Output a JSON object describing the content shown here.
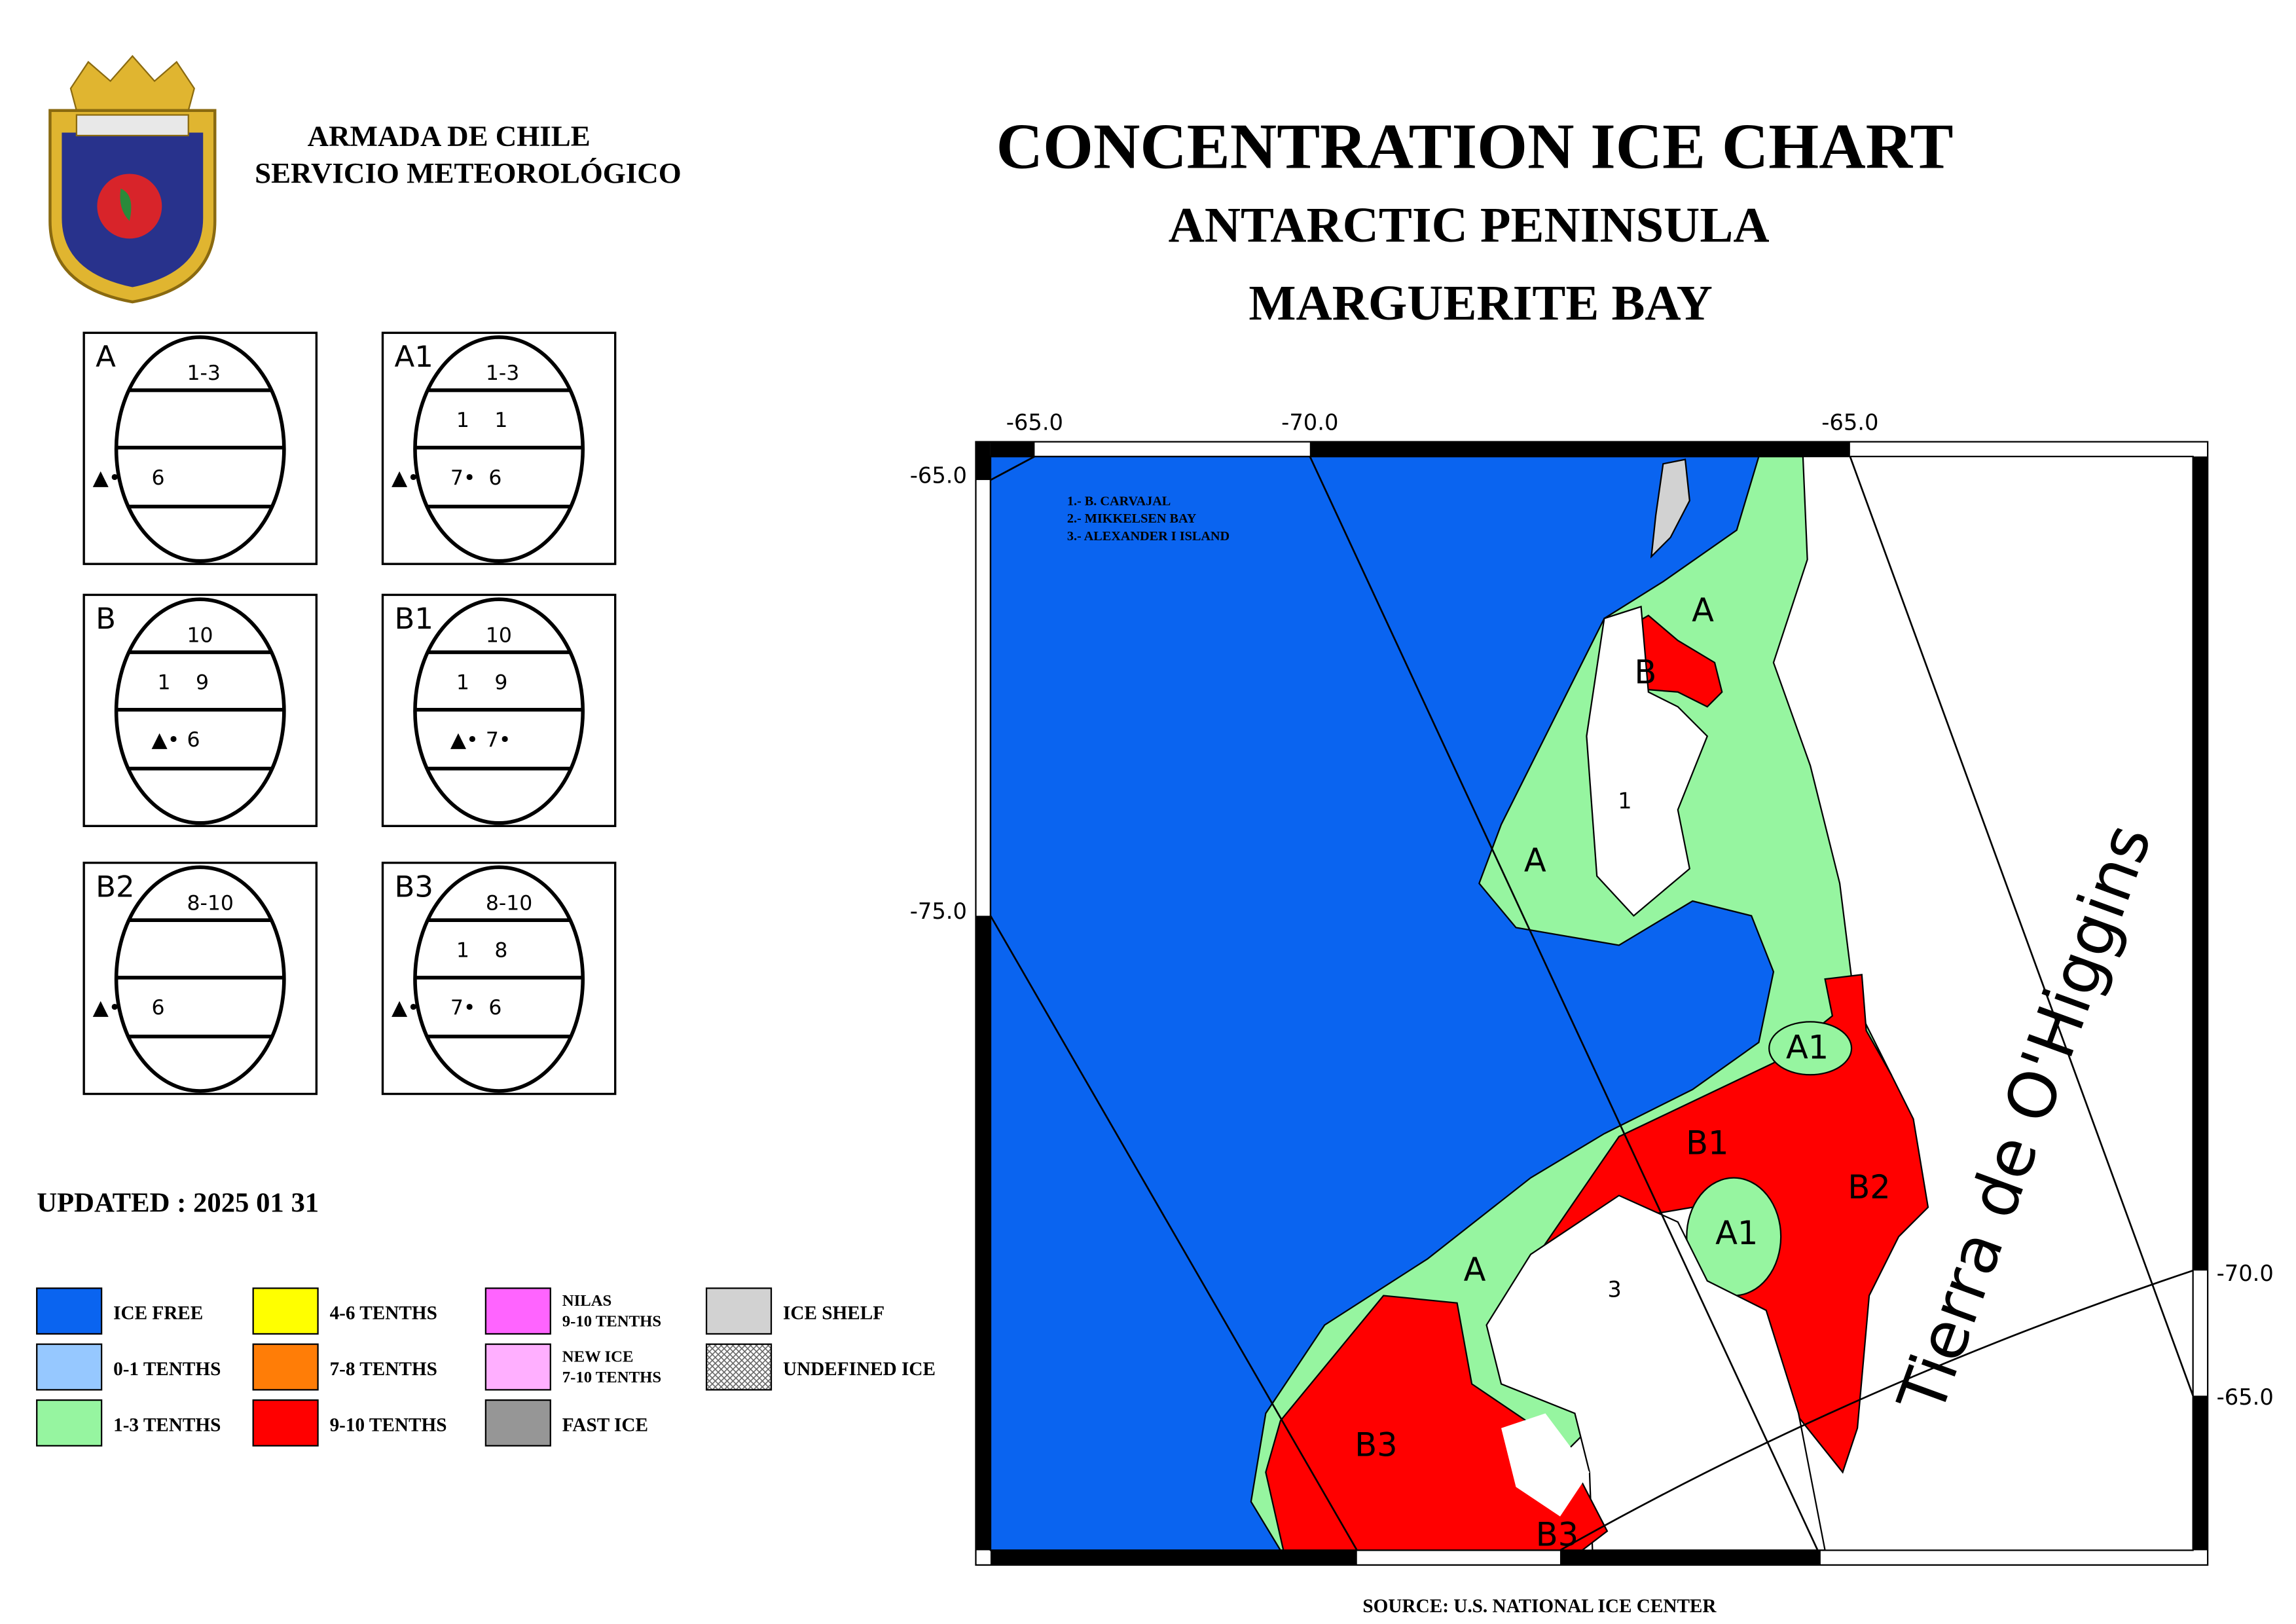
{
  "header": {
    "org": "ARMADA DE CHILE",
    "service": "SERVICIO METEOROLÓGICO"
  },
  "title": [
    "CONCENTRATION ICE CHART",
    "ANTARCTIC PENINSULA",
    "MARGUERITE BAY"
  ],
  "egg_codes": [
    {
      "label": "A",
      "total": "1-3",
      "form": "▲•",
      "stages": [
        "6"
      ]
    },
    {
      "label": "A1",
      "total": "1-3",
      "partials": [
        "1",
        "1"
      ],
      "form": "▲•",
      "stages": [
        "7•",
        "6"
      ]
    },
    {
      "label": "B",
      "total": "10",
      "partials": [
        "1",
        "9"
      ],
      "form": "▲•",
      "stages": [
        "6"
      ]
    },
    {
      "label": "B1",
      "total": "10",
      "partials": [
        "1",
        "9"
      ],
      "form": "▲•",
      "stages": [
        "7•"
      ]
    },
    {
      "label": "B2",
      "total": "8-10",
      "form": "▲•",
      "stages": [
        "6"
      ]
    },
    {
      "label": "B3",
      "total": "8-10",
      "partials": [
        "1",
        "8"
      ],
      "form": "▲•",
      "stages": [
        "7•",
        "6"
      ]
    }
  ],
  "updated": "UPDATED : 2025 01 31",
  "legend": [
    {
      "lines": [
        "ICE FREE"
      ],
      "color": "#0a64f0"
    },
    {
      "lines": [
        "0-1 TENTHS"
      ],
      "color": "#96c8ff"
    },
    {
      "lines": [
        "1-3 TENTHS"
      ],
      "color": "#96f5a0"
    },
    {
      "lines": [
        "4-6 TENTHS"
      ],
      "color": "#ffff00"
    },
    {
      "lines": [
        "7-8 TENTHS"
      ],
      "color": "#ff7d07"
    },
    {
      "lines": [
        "9-10 TENTHS"
      ],
      "color": "#ff0000"
    },
    {
      "lines": [
        "NILAS",
        "9-10 TENTHS"
      ],
      "color": "#ff64ff"
    },
    {
      "lines": [
        "NEW ICE",
        "7-10 TENTHS"
      ],
      "color": "#ffafff"
    },
    {
      "lines": [
        "FAST ICE"
      ],
      "color": "#969696"
    },
    {
      "lines": [
        "ICE SHELF"
      ],
      "color": "#d2d2d2"
    },
    {
      "lines": [
        "UNDEFINED ICE"
      ],
      "color": "#bbbbbb"
    }
  ],
  "map": {
    "top_labels": [
      "-65.0",
      "-70.0",
      "-65.0"
    ],
    "left_labels": [
      "-65.0",
      "-75.0"
    ],
    "right_labels": [
      "-70.0",
      "-65.0"
    ],
    "places": [
      "1.- B. CARVAJAL",
      "2.- MIKKELSEN BAY",
      "3.- ALEXANDER I ISLAND"
    ],
    "regions": [
      "A",
      "B",
      "1",
      "A",
      "A1",
      "B1",
      "B2",
      "A1",
      "A",
      "3",
      "B3",
      "B3"
    ],
    "land_name": "Tierra de O'Higgins"
  },
  "source": "SOURCE: U.S. NATIONAL ICE CENTER"
}
